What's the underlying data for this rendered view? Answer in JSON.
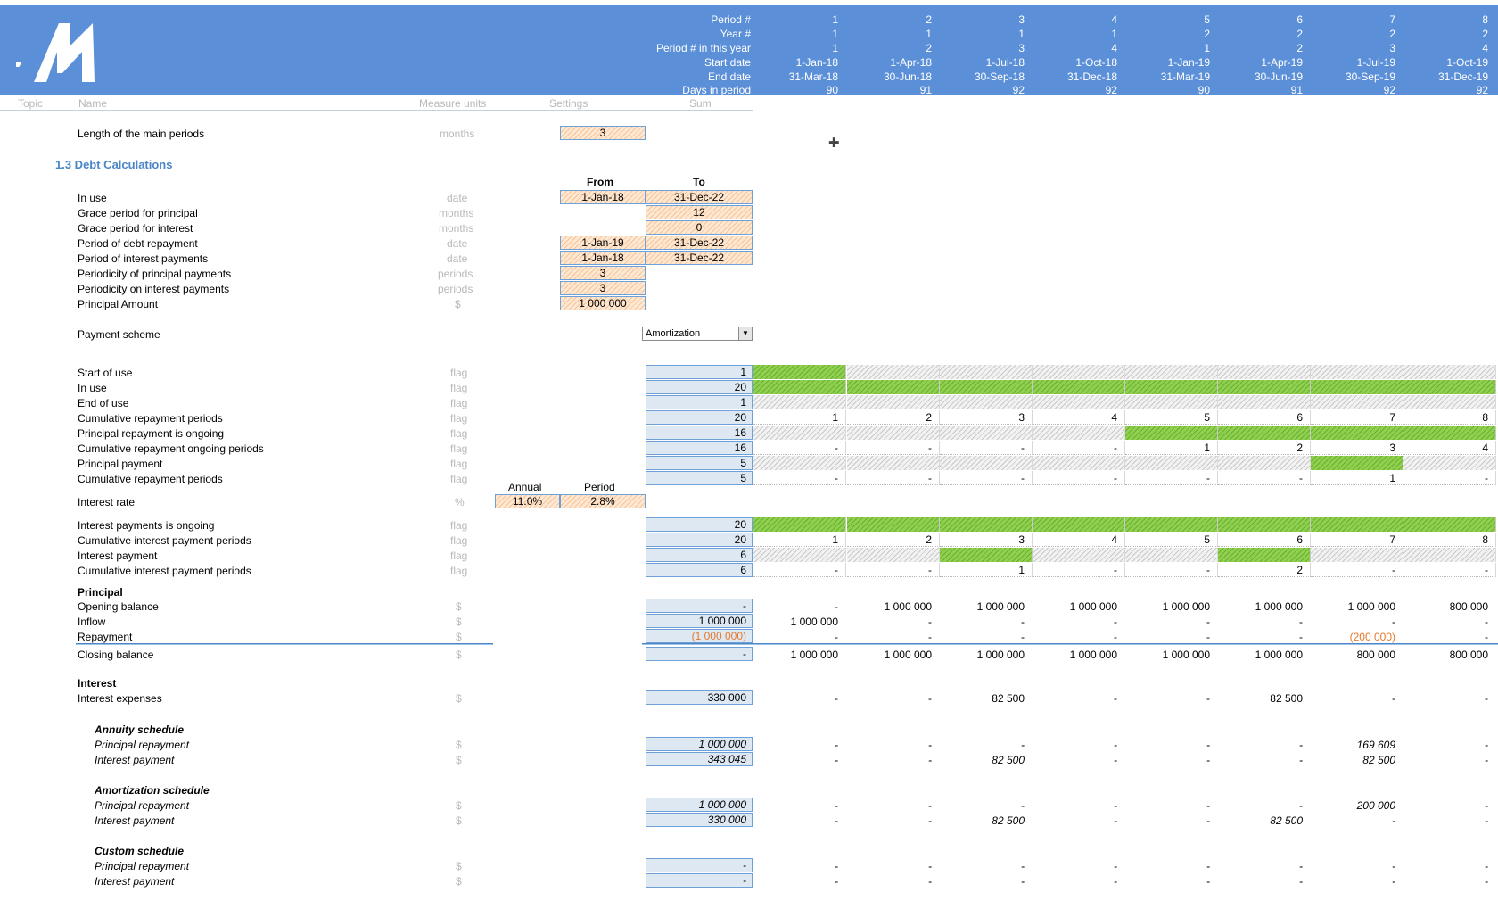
{
  "header": {
    "row_labels": [
      "Period #",
      "Year #",
      "Period # in this year",
      "Start date",
      "End date",
      "Days in period"
    ],
    "columns": [
      {
        "period": "1",
        "year": "1",
        "pyear": "1",
        "start": "1-Jan-18",
        "end": "31-Mar-18",
        "days": "90"
      },
      {
        "period": "2",
        "year": "1",
        "pyear": "2",
        "start": "1-Apr-18",
        "end": "30-Jun-18",
        "days": "91"
      },
      {
        "period": "3",
        "year": "1",
        "pyear": "3",
        "start": "1-Jul-18",
        "end": "30-Sep-18",
        "days": "92"
      },
      {
        "period": "4",
        "year": "1",
        "pyear": "4",
        "start": "1-Oct-18",
        "end": "31-Dec-18",
        "days": "92"
      },
      {
        "period": "5",
        "year": "2",
        "pyear": "1",
        "start": "1-Jan-19",
        "end": "31-Mar-19",
        "days": "90"
      },
      {
        "period": "6",
        "year": "2",
        "pyear": "2",
        "start": "1-Apr-19",
        "end": "30-Jun-19",
        "days": "91"
      },
      {
        "period": "7",
        "year": "2",
        "pyear": "3",
        "start": "1-Jul-19",
        "end": "30-Sep-19",
        "days": "92"
      },
      {
        "period": "8",
        "year": "2",
        "pyear": "4",
        "start": "1-Oct-19",
        "end": "31-Dec-19",
        "days": "92"
      }
    ]
  },
  "subheader": {
    "topic": "Topic",
    "name": "Name",
    "units": "Measure units",
    "settings": "Settings",
    "sum": "Sum"
  },
  "length_row": {
    "label": "Length of the main periods",
    "unit": "months",
    "value": "3"
  },
  "section_title": "1.3 Debt Calculations",
  "from_label": "From",
  "to_label": "To",
  "settings_rows": [
    {
      "label": "In use",
      "unit": "date",
      "from": "1-Jan-18",
      "to": "31-Dec-22"
    },
    {
      "label": "Grace period for principal",
      "unit": "months",
      "from": "",
      "to": "12"
    },
    {
      "label": "Grace period for interest",
      "unit": "months",
      "from": "",
      "to": "0"
    },
    {
      "label": "Period of debt repayment",
      "unit": "date",
      "from": "1-Jan-19",
      "to": "31-Dec-22"
    },
    {
      "label": "Period of interest payments",
      "unit": "date",
      "from": "1-Jan-18",
      "to": "31-Dec-22"
    },
    {
      "label": "Periodicity of principal payments",
      "unit": "periods",
      "from": "3",
      "to": ""
    },
    {
      "label": "Periodicity on interest payments",
      "unit": "periods",
      "from": "3",
      "to": ""
    },
    {
      "label": "Principal Amount",
      "unit": "$",
      "from": "1 000 000",
      "to": ""
    }
  ],
  "payment_scheme": {
    "label": "Payment scheme",
    "value": "Amortization"
  },
  "flag_rows": [
    {
      "label": "Start of use",
      "unit": "flag",
      "sum": "1",
      "cells": [
        "g",
        "h",
        "h",
        "h",
        "h",
        "h",
        "h",
        "h"
      ]
    },
    {
      "label": "In use",
      "unit": "flag",
      "sum": "20",
      "cells": [
        "g",
        "g",
        "g",
        "g",
        "g",
        "g",
        "g",
        "g"
      ]
    },
    {
      "label": "End of use",
      "unit": "flag",
      "sum": "1",
      "cells": [
        "h",
        "h",
        "h",
        "h",
        "h",
        "h",
        "h",
        "h"
      ]
    },
    {
      "label": "Cumulative repayment periods",
      "unit": "flag",
      "sum": "20",
      "cells": [
        "1",
        "2",
        "3",
        "4",
        "5",
        "6",
        "7",
        "8"
      ]
    },
    {
      "label": "Principal repayment is ongoing",
      "unit": "flag",
      "sum": "16",
      "cells": [
        "h",
        "h",
        "h",
        "h",
        "g",
        "g",
        "g",
        "g"
      ]
    },
    {
      "label": "Cumulative repayment ongoing periods",
      "unit": "flag",
      "sum": "16",
      "cells": [
        "-",
        "-",
        "-",
        "-",
        "1",
        "2",
        "3",
        "4"
      ]
    },
    {
      "label": "Principal payment",
      "unit": "flag",
      "sum": "5",
      "cells": [
        "h",
        "h",
        "h",
        "h",
        "h",
        "h",
        "g",
        "h"
      ]
    },
    {
      "label": "Cumulative repayment periods",
      "unit": "flag",
      "sum": "5",
      "cells": [
        "-",
        "-",
        "-",
        "-",
        "-",
        "-",
        "1",
        "-"
      ]
    }
  ],
  "annual_label": "Annual",
  "period_label": "Period",
  "interest_rate": {
    "label": "Interest rate",
    "unit": "%",
    "annual": "11.0%",
    "period": "2.8%"
  },
  "interest_flag_rows": [
    {
      "label": "Interest payments is ongoing",
      "unit": "flag",
      "sum": "20",
      "cells": [
        "g",
        "g",
        "g",
        "g",
        "g",
        "g",
        "g",
        "g"
      ]
    },
    {
      "label": "Cumulative interest payment periods",
      "unit": "flag",
      "sum": "20",
      "cells": [
        "1",
        "2",
        "3",
        "4",
        "5",
        "6",
        "7",
        "8"
      ]
    },
    {
      "label": "Interest payment",
      "unit": "flag",
      "sum": "6",
      "cells": [
        "h",
        "h",
        "g",
        "h",
        "h",
        "g",
        "h",
        "h"
      ]
    },
    {
      "label": "Cumulative interest payment periods",
      "unit": "flag",
      "sum": "6",
      "cells": [
        "-",
        "-",
        "1",
        "-",
        "-",
        "2",
        "-",
        "-"
      ]
    }
  ],
  "principal_title": "Principal",
  "principal_rows": [
    {
      "label": "Opening balance",
      "unit": "$",
      "sum": "-",
      "vals": [
        "-",
        "1 000 000",
        "1 000 000",
        "1 000 000",
        "1 000 000",
        "1 000 000",
        "1 000 000",
        "800 000"
      ]
    },
    {
      "label": "Inflow",
      "unit": "$",
      "sum": "1 000 000",
      "vals": [
        "1 000 000",
        "-",
        "-",
        "-",
        "-",
        "-",
        "-",
        "-"
      ]
    },
    {
      "label": "Repayment",
      "unit": "$",
      "sum": "(1 000 000)",
      "vals": [
        "-",
        "-",
        "-",
        "-",
        "-",
        "-",
        "(200 000)",
        "-"
      ]
    }
  ],
  "closing_row": {
    "label": "Closing balance",
    "unit": "$",
    "sum": "-",
    "vals": [
      "1 000 000",
      "1 000 000",
      "1 000 000",
      "1 000 000",
      "1 000 000",
      "1 000 000",
      "800 000",
      "800 000"
    ]
  },
  "interest_title": "Interest",
  "interest_expenses": {
    "label": "Interest expenses",
    "unit": "$",
    "sum": "330 000",
    "vals": [
      "-",
      "-",
      "82 500",
      "-",
      "-",
      "82 500",
      "-",
      "-"
    ]
  },
  "schedules": [
    {
      "title": "Annuity schedule",
      "rows": [
        {
          "label": "Principal repayment",
          "unit": "$",
          "sum": "1 000 000",
          "vals": [
            "-",
            "-",
            "-",
            "-",
            "-",
            "-",
            "169 609",
            "-"
          ]
        },
        {
          "label": "Interest payment",
          "unit": "$",
          "sum": "343 045",
          "vals": [
            "-",
            "-",
            "82 500",
            "-",
            "-",
            "-",
            "82 500",
            "-"
          ]
        }
      ]
    },
    {
      "title": "Amortization schedule",
      "rows": [
        {
          "label": "Principal repayment",
          "unit": "$",
          "sum": "1 000 000",
          "vals": [
            "-",
            "-",
            "-",
            "-",
            "-",
            "-",
            "200 000",
            "-"
          ]
        },
        {
          "label": "Interest payment",
          "unit": "$",
          "sum": "330 000",
          "vals": [
            "-",
            "-",
            "82 500",
            "-",
            "-",
            "82 500",
            "-",
            "-"
          ]
        }
      ]
    },
    {
      "title": "Custom schedule",
      "rows": [
        {
          "label": "Principal repayment",
          "unit": "$",
          "sum": "-",
          "vals": [
            "-",
            "-",
            "-",
            "-",
            "-",
            "-",
            "-",
            "-"
          ]
        },
        {
          "label": "Interest payment",
          "unit": "$",
          "sum": "-",
          "vals": [
            "-",
            "-",
            "-",
            "-",
            "-",
            "-",
            "-",
            "-"
          ]
        }
      ]
    }
  ],
  "colors": {
    "header_bg": "#5b8fd8",
    "section": "#4a86c8",
    "flag_green": "#8fd14f",
    "input_orange": "#f7a560",
    "negative": "#e8782a"
  }
}
